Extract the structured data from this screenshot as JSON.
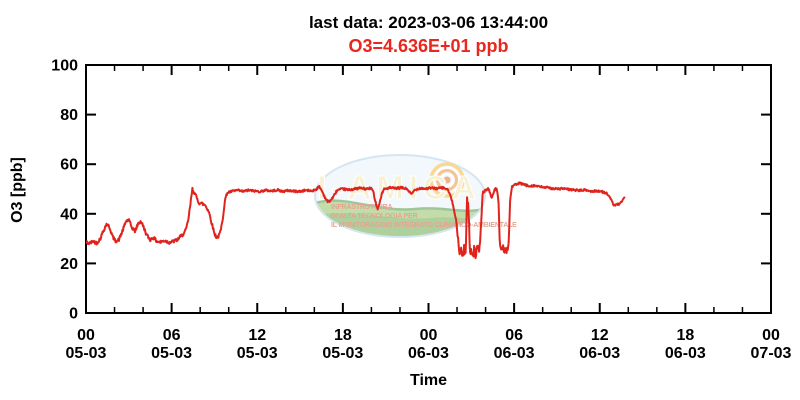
{
  "header": {
    "title": "last data: 2023-03-06 13:44:00",
    "subtitle": "O3=4.636E+01 ppb",
    "subtitle_color": "#e8281e"
  },
  "chart_data": {
    "type": "line",
    "title": "last data: 2023-03-06 13:44:00",
    "subtitle": "O3=4.636E+01 ppb",
    "xlabel": "Time",
    "ylabel": "O3 [ppb]",
    "ylim": [
      0,
      100
    ],
    "yticks": [
      0,
      20,
      40,
      60,
      80,
      100
    ],
    "xlim_hours": [
      0,
      48
    ],
    "x_origin": "2023-03-05 00:00",
    "x_minor_tick_step_hours": 2,
    "grid": false,
    "legend": "none",
    "line_color": "#e0231c",
    "xticks": [
      {
        "h": 0,
        "hour": "00",
        "date": "05-03"
      },
      {
        "h": 6,
        "hour": "06",
        "date": "05-03"
      },
      {
        "h": 12,
        "hour": "12",
        "date": "05-03"
      },
      {
        "h": 18,
        "hour": "18",
        "date": "05-03"
      },
      {
        "h": 24,
        "hour": "00",
        "date": "06-03"
      },
      {
        "h": 30,
        "hour": "06",
        "date": "06-03"
      },
      {
        "h": 36,
        "hour": "12",
        "date": "06-03"
      },
      {
        "h": 42,
        "hour": "18",
        "date": "06-03"
      },
      {
        "h": 48,
        "hour": "00",
        "date": "07-03"
      }
    ],
    "series": [
      {
        "name": "O3",
        "unit": "ppb",
        "last_value_ppb": 46.36,
        "points_hour_ppb": [
          [
            0.0,
            28.5
          ],
          [
            0.25,
            28.0
          ],
          [
            0.5,
            29.0
          ],
          [
            0.75,
            28.2
          ],
          [
            1.0,
            30.0
          ],
          [
            1.2,
            33.0
          ],
          [
            1.45,
            36.0
          ],
          [
            1.65,
            34.5
          ],
          [
            1.85,
            31.0
          ],
          [
            2.05,
            29.0
          ],
          [
            2.3,
            29.5
          ],
          [
            2.55,
            33.0
          ],
          [
            2.8,
            37.0
          ],
          [
            3.0,
            37.5
          ],
          [
            3.2,
            34.5
          ],
          [
            3.45,
            33.0
          ],
          [
            3.65,
            36.0
          ],
          [
            3.85,
            37.0
          ],
          [
            4.05,
            34.5
          ],
          [
            4.25,
            31.5
          ],
          [
            4.5,
            29.5
          ],
          [
            4.7,
            30.5
          ],
          [
            4.95,
            29.0
          ],
          [
            5.2,
            28.5
          ],
          [
            5.5,
            29.2
          ],
          [
            5.8,
            28.5
          ],
          [
            6.1,
            28.8
          ],
          [
            6.4,
            29.5
          ],
          [
            6.65,
            31.0
          ],
          [
            6.85,
            32.0
          ],
          [
            7.0,
            33.5
          ],
          [
            7.15,
            37.0
          ],
          [
            7.3,
            43.0
          ],
          [
            7.45,
            50.0
          ],
          [
            7.6,
            48.5
          ],
          [
            7.75,
            46.5
          ],
          [
            7.9,
            44.5
          ],
          [
            8.1,
            44.2
          ],
          [
            8.35,
            43.5
          ],
          [
            8.6,
            41.0
          ],
          [
            8.8,
            36.5
          ],
          [
            9.0,
            32.0
          ],
          [
            9.15,
            30.5
          ],
          [
            9.3,
            31.0
          ],
          [
            9.45,
            33.5
          ],
          [
            9.6,
            39.0
          ],
          [
            9.75,
            46.0
          ],
          [
            9.9,
            48.5
          ],
          [
            10.2,
            49.0
          ],
          [
            10.6,
            49.5
          ],
          [
            11.0,
            49.0
          ],
          [
            11.4,
            49.5
          ],
          [
            11.8,
            49.2
          ],
          [
            12.2,
            49.0
          ],
          [
            12.6,
            49.5
          ],
          [
            13.0,
            49.2
          ],
          [
            13.4,
            49.6
          ],
          [
            13.8,
            49.0
          ],
          [
            14.2,
            49.4
          ],
          [
            14.6,
            49.1
          ],
          [
            15.0,
            49.0
          ],
          [
            15.4,
            49.5
          ],
          [
            15.8,
            49.2
          ],
          [
            16.1,
            49.8
          ],
          [
            16.35,
            51.0
          ],
          [
            16.55,
            49.0
          ],
          [
            16.75,
            46.5
          ],
          [
            16.95,
            44.8
          ],
          [
            17.15,
            45.5
          ],
          [
            17.35,
            47.0
          ],
          [
            17.6,
            49.5
          ],
          [
            18.0,
            50.0
          ],
          [
            18.4,
            49.6
          ],
          [
            18.8,
            50.0
          ],
          [
            19.2,
            50.4
          ],
          [
            19.6,
            50.0
          ],
          [
            20.0,
            50.3
          ],
          [
            20.15,
            48.5
          ],
          [
            20.3,
            44.5
          ],
          [
            20.45,
            42.0
          ],
          [
            20.6,
            45.0
          ],
          [
            20.75,
            48.5
          ],
          [
            20.9,
            50.0
          ],
          [
            21.3,
            50.5
          ],
          [
            21.7,
            50.2
          ],
          [
            22.1,
            50.5
          ],
          [
            22.5,
            50.0
          ],
          [
            22.8,
            47.8
          ],
          [
            23.0,
            49.5
          ],
          [
            23.4,
            50.4
          ],
          [
            23.8,
            50.1
          ],
          [
            24.2,
            50.4
          ],
          [
            24.6,
            50.2
          ],
          [
            25.0,
            50.5
          ],
          [
            25.3,
            50.0
          ],
          [
            25.5,
            48.0
          ],
          [
            25.75,
            43.0
          ],
          [
            25.95,
            37.0
          ],
          [
            26.1,
            27.0
          ],
          [
            26.2,
            23.5
          ],
          [
            26.3,
            26.5
          ],
          [
            26.4,
            22.8
          ],
          [
            26.5,
            26.0
          ],
          [
            26.6,
            24.0
          ],
          [
            26.7,
            45.5
          ],
          [
            26.8,
            42.5
          ],
          [
            26.9,
            24.5
          ],
          [
            27.0,
            26.5
          ],
          [
            27.1,
            23.0
          ],
          [
            27.2,
            25.5
          ],
          [
            27.3,
            23.5
          ],
          [
            27.4,
            26.0
          ],
          [
            27.5,
            24.5
          ],
          [
            27.6,
            27.0
          ],
          [
            27.7,
            38.0
          ],
          [
            27.8,
            48.5
          ],
          [
            28.0,
            49.5
          ],
          [
            28.2,
            50.2
          ],
          [
            28.45,
            46.2
          ],
          [
            28.6,
            49.5
          ],
          [
            28.75,
            50.3
          ],
          [
            28.9,
            46.0
          ],
          [
            29.0,
            27.5
          ],
          [
            29.1,
            25.0
          ],
          [
            29.2,
            27.0
          ],
          [
            29.3,
            24.0
          ],
          [
            29.4,
            26.0
          ],
          [
            29.5,
            25.0
          ],
          [
            29.62,
            28.5
          ],
          [
            29.72,
            46.0
          ],
          [
            29.85,
            51.0
          ],
          [
            30.1,
            51.8
          ],
          [
            30.4,
            52.3
          ],
          [
            30.7,
            51.8
          ],
          [
            31.0,
            51.2
          ],
          [
            31.4,
            51.4
          ],
          [
            31.8,
            50.9
          ],
          [
            32.2,
            50.6
          ],
          [
            32.6,
            50.3
          ],
          [
            33.0,
            50.0
          ],
          [
            33.4,
            50.2
          ],
          [
            33.8,
            49.8
          ],
          [
            34.2,
            49.6
          ],
          [
            34.6,
            49.4
          ],
          [
            35.0,
            49.6
          ],
          [
            35.4,
            49.0
          ],
          [
            35.8,
            49.3
          ],
          [
            36.2,
            48.8
          ],
          [
            36.5,
            48.3
          ],
          [
            36.75,
            46.0
          ],
          [
            36.95,
            43.8
          ],
          [
            37.15,
            43.4
          ],
          [
            37.35,
            44.0
          ],
          [
            37.55,
            44.6
          ],
          [
            37.73,
            46.5
          ]
        ],
        "noise_amplitude_ppb": {
          "default": 0.45,
          "regions": [
            [
              0,
              9.6,
              0.7
            ],
            [
              26.05,
              27.65,
              1.8
            ],
            [
              28.95,
              29.6,
              1.4
            ]
          ]
        }
      }
    ]
  },
  "watermark": {
    "wordmark": "I-AMICA",
    "caption_lines": [
      "INFRASTRUTTURA",
      "DI ALTA TECNOLOGIA PER",
      "IL MONITORAGGIO INTEGRATO CLIMATICO-AMBIENTALE"
    ]
  }
}
